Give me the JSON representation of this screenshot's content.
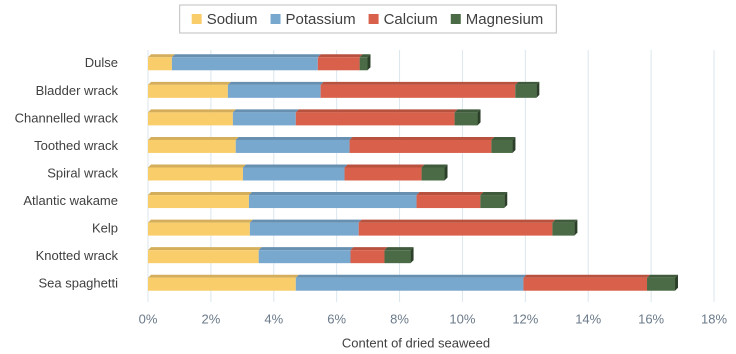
{
  "chart_data": {
    "type": "stacked_barh",
    "xlabel": "Content of dried seaweed",
    "categories": [
      "Dulse",
      "Bladder wrack",
      "Channelled wrack",
      "Toothed wrack",
      "Spiral wrack",
      "Atlantic wakame",
      "Kelp",
      "Knotted wrack",
      "Sea spaghetti"
    ],
    "series": [
      {
        "name": "Sodium",
        "color": "#f9cd6a",
        "values": [
          0.76,
          2.54,
          2.7,
          2.79,
          3.02,
          3.21,
          3.24,
          3.52,
          4.7
        ]
      },
      {
        "name": "Potassium",
        "color": "#79a8cf",
        "values": [
          4.64,
          2.95,
          2.0,
          3.62,
          3.23,
          5.33,
          3.46,
          2.92,
          7.24
        ]
      },
      {
        "name": "Calcium",
        "color": "#d9604a",
        "values": [
          1.33,
          6.19,
          5.05,
          4.51,
          2.45,
          2.03,
          6.16,
          1.08,
          3.93
        ]
      },
      {
        "name": "Magnesium",
        "color": "#4a6b45",
        "values": [
          0.25,
          0.67,
          0.73,
          0.67,
          0.73,
          0.76,
          0.7,
          0.83,
          0.89
        ]
      }
    ],
    "xlim": [
      0,
      18
    ],
    "xticks": [
      {
        "value": 0,
        "label": "0%"
      },
      {
        "value": 2,
        "label": "2%"
      },
      {
        "value": 4,
        "label": "4%"
      },
      {
        "value": 6,
        "label": "6%"
      },
      {
        "value": 8,
        "label": "8%"
      },
      {
        "value": 10,
        "label": "10%"
      },
      {
        "value": 12,
        "label": "12%"
      },
      {
        "value": 14,
        "label": "14%"
      },
      {
        "value": 16,
        "label": "16%"
      },
      {
        "value": 18,
        "label": "18%"
      }
    ],
    "grid": true,
    "legend": "top"
  }
}
